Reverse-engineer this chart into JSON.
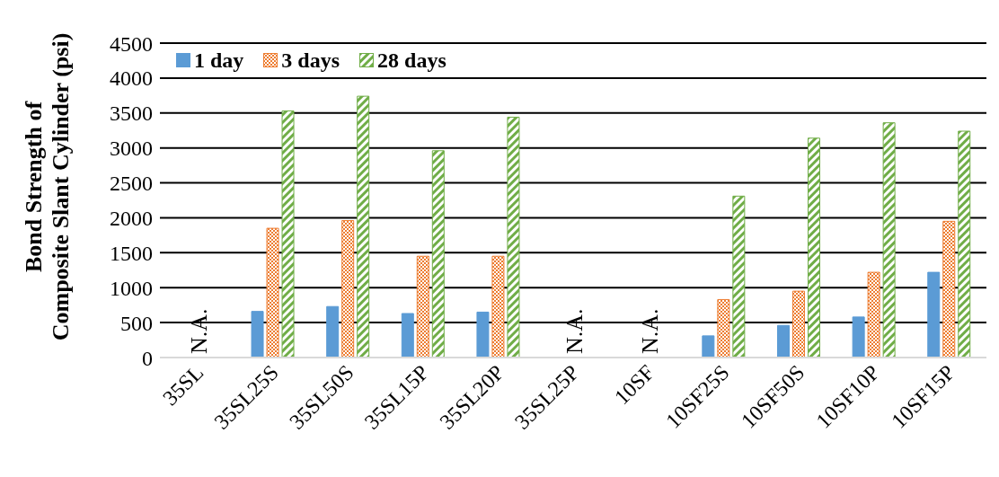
{
  "chart_data": {
    "type": "bar",
    "ylabel": "Bond Strength of\nComposite Slant Cylinder (psi)",
    "categories": [
      "35SL",
      "35SL25S",
      "35SL50S",
      "35SL15P",
      "35SL20P",
      "35SL25P",
      "10SF",
      "10SF25S",
      "10SF50S",
      "10SF10P",
      "10SF15P"
    ],
    "series": [
      {
        "name": "1 day",
        "color": "#5b9bd5",
        "values": [
          null,
          660,
          730,
          630,
          650,
          null,
          null,
          310,
          460,
          580,
          1220
        ]
      },
      {
        "name": "3 days",
        "color": "#ed7d31",
        "values": [
          null,
          1850,
          1960,
          1450,
          1450,
          null,
          null,
          830,
          950,
          1220,
          1950
        ]
      },
      {
        "name": "28 days",
        "color": "#70ad47",
        "values": [
          null,
          3530,
          3740,
          2960,
          3440,
          null,
          null,
          2310,
          3140,
          3360,
          3240
        ]
      }
    ],
    "ylim": [
      0,
      4500
    ],
    "yticks": [
      0,
      500,
      1000,
      1500,
      2000,
      2500,
      3000,
      3500,
      4000,
      4500
    ],
    "grid": "y",
    "legend": "top left",
    "annotations": [
      "N.A.",
      "N.A.",
      "N.A."
    ]
  }
}
